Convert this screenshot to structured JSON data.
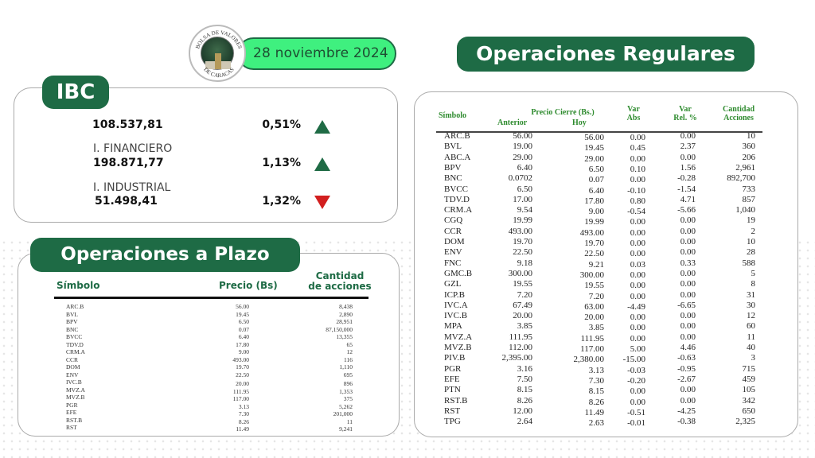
{
  "header": {
    "logo_text": "BOLSA DE VALORES DE CARACAS",
    "date": "28 noviembre 2024"
  },
  "ibc": {
    "title": "IBC",
    "rows": [
      {
        "label": "",
        "value": "108.537,81",
        "pct": "0,51%",
        "direction": "up"
      },
      {
        "label": "I. FINANCIERO",
        "value": "198.871,77",
        "pct": "1,13%",
        "direction": "up"
      },
      {
        "label": "I. INDUSTRIAL",
        "value": "51.498,41",
        "pct": "1,32%",
        "direction": "down"
      }
    ]
  },
  "plazo": {
    "title": "Operaciones a Plazo",
    "headers": {
      "symbol": "Símbolo",
      "price": "Precio (Bs)",
      "qty_line1": "Cantidad",
      "qty_line2": "de acciones"
    },
    "rows": [
      [
        "ARC.B",
        "56.00",
        "8,438"
      ],
      [
        "BVL",
        "19.45",
        "2,890"
      ],
      [
        "BPV",
        "6.50",
        "28,951"
      ],
      [
        "BNC",
        "0.07",
        "87,150,000"
      ],
      [
        "BVCC",
        "6.40",
        "13,355"
      ],
      [
        "TDV.D",
        "17.80",
        "65"
      ],
      [
        "CRM.A",
        "9.00",
        "12"
      ],
      [
        "CCR",
        "493.00",
        "116"
      ],
      [
        "DOM",
        "19.70",
        "1,110"
      ],
      [
        "ENV",
        "22.50",
        "695"
      ],
      [
        "IVC.B",
        "20.00",
        "896"
      ],
      [
        "MVZ.A",
        "111.95",
        "1,353"
      ],
      [
        "MVZ.B",
        "117.00",
        "375"
      ],
      [
        "PGR",
        "3.13",
        "5,262"
      ],
      [
        "EFE",
        "7.30",
        "201,000"
      ],
      [
        "RST.B",
        "8.26",
        "11"
      ],
      [
        "RST",
        "11.49",
        "9,241"
      ]
    ]
  },
  "regulares": {
    "title": "Operaciones Regulares",
    "headers": {
      "symbol": "Símbolo",
      "price_group": "Precio Cierre (Bs.)",
      "prev": "Anterior",
      "today": "Hoy",
      "var_abs_1": "Var",
      "var_abs_2": "Abs",
      "var_rel_1": "Var",
      "var_rel_2": "Rel. %",
      "qty_1": "Cantidad",
      "qty_2": "Acciones"
    },
    "rows": [
      [
        "ARC.B",
        "56.00",
        "56.00",
        "0.00",
        "0.00",
        "10"
      ],
      [
        "BVL",
        "19.00",
        "19.45",
        "0.45",
        "2.37",
        "360"
      ],
      [
        "ABC.A",
        "29.00",
        "29.00",
        "0.00",
        "0.00",
        "206"
      ],
      [
        "BPV",
        "6.40",
        "6.50",
        "0.10",
        "1.56",
        "2,961"
      ],
      [
        "BNC",
        "0.0702",
        "0.07",
        "0.00",
        "-0.28",
        "892,700"
      ],
      [
        "BVCC",
        "6.50",
        "6.40",
        "-0.10",
        "-1.54",
        "733"
      ],
      [
        "TDV.D",
        "17.00",
        "17.80",
        "0.80",
        "4.71",
        "857"
      ],
      [
        "CRM.A",
        "9.54",
        "9.00",
        "-0.54",
        "-5.66",
        "1,040"
      ],
      [
        "CGQ",
        "19.99",
        "19.99",
        "0.00",
        "0.00",
        "19"
      ],
      [
        "CCR",
        "493.00",
        "493.00",
        "0.00",
        "0.00",
        "2"
      ],
      [
        "DOM",
        "19.70",
        "19.70",
        "0.00",
        "0.00",
        "10"
      ],
      [
        "ENV",
        "22.50",
        "22.50",
        "0.00",
        "0.00",
        "28"
      ],
      [
        "FNC",
        "9.18",
        "9.21",
        "0.03",
        "0.33",
        "588"
      ],
      [
        "GMC.B",
        "300.00",
        "300.00",
        "0.00",
        "0.00",
        "5"
      ],
      [
        "GZL",
        "19.55",
        "19.55",
        "0.00",
        "0.00",
        "8"
      ],
      [
        "ICP.B",
        "7.20",
        "7.20",
        "0.00",
        "0.00",
        "31"
      ],
      [
        "IVC.A",
        "67.49",
        "63.00",
        "-4.49",
        "-6.65",
        "30"
      ],
      [
        "IVC.B",
        "20.00",
        "20.00",
        "0.00",
        "0.00",
        "12"
      ],
      [
        "MPA",
        "3.85",
        "3.85",
        "0.00",
        "0.00",
        "60"
      ],
      [
        "MVZ.A",
        "111.95",
        "111.95",
        "0.00",
        "0.00",
        "11"
      ],
      [
        "MVZ.B",
        "112.00",
        "117.00",
        "5.00",
        "4.46",
        "40"
      ],
      [
        "PIV.B",
        "2,395.00",
        "2,380.00",
        "-15.00",
        "-0.63",
        "3"
      ],
      [
        "PGR",
        "3.16",
        "3.13",
        "-0.03",
        "-0.95",
        "715"
      ],
      [
        "EFE",
        "7.50",
        "7.30",
        "-0.20",
        "-2.67",
        "459"
      ],
      [
        "PTN",
        "8.15",
        "8.15",
        "0.00",
        "0.00",
        "105"
      ],
      [
        "RST.B",
        "8.26",
        "8.26",
        "0.00",
        "0.00",
        "342"
      ],
      [
        "RST",
        "12.00",
        "11.49",
        "-0.51",
        "-4.25",
        "650"
      ],
      [
        "TPG",
        "2.64",
        "2.63",
        "-0.01",
        "-0.38",
        "2,325"
      ]
    ]
  },
  "colors": {
    "brand_green": "#1e6b45",
    "date_pill": "#3ff07f",
    "up": "#1f6b45",
    "down": "#d21f1f",
    "header_green": "#2e8b2e"
  }
}
